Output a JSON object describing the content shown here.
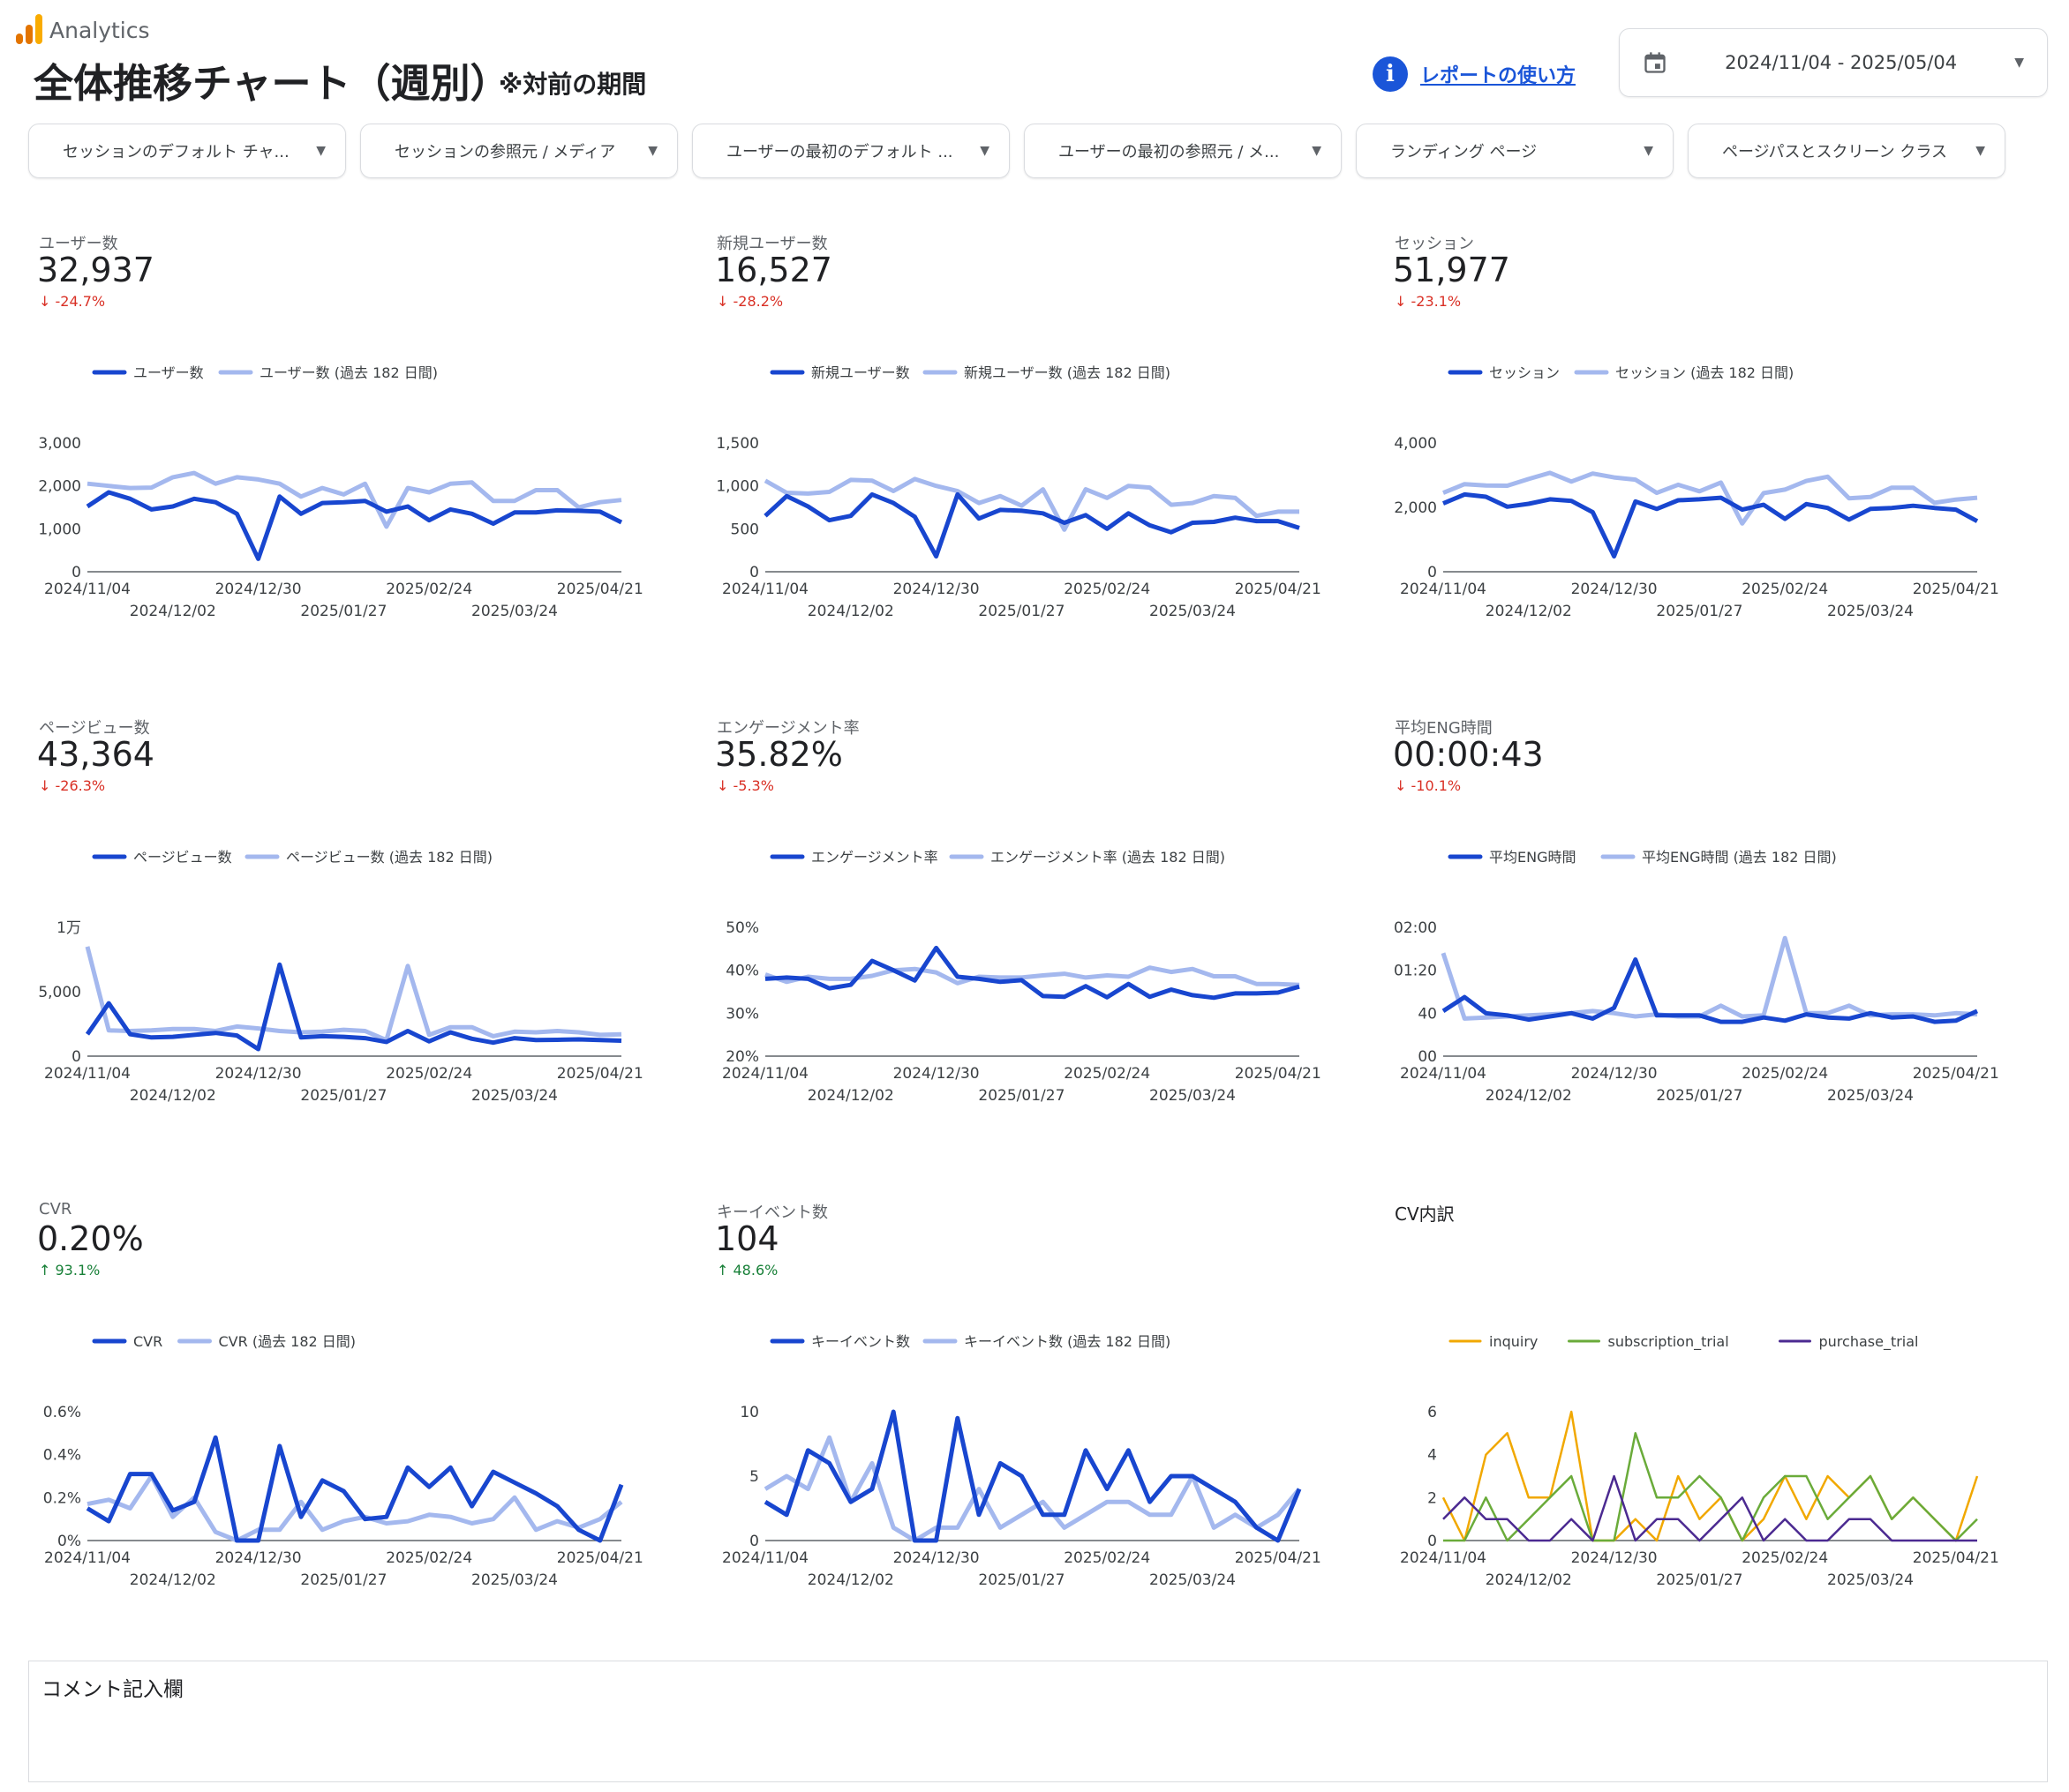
{
  "app": {
    "name": "Analytics"
  },
  "header": {
    "title": "全体推移チャート（週別）",
    "subtitle": "※対前の期間",
    "help_label": "レポートの使い方",
    "date_range": "2024/11/04 - 2025/05/04"
  },
  "filters": [
    {
      "label": "セッションのデフォルト チャ..."
    },
    {
      "label": "セッションの参照元 / メディア"
    },
    {
      "label": "ユーザーの最初のデフォルト ..."
    },
    {
      "label": "ユーザーの最初の参照元 / メ..."
    },
    {
      "label": "ランディング ページ"
    },
    {
      "label": "ページパスとスクリーン クラス"
    }
  ],
  "colors": {
    "primary": "#1846cf",
    "comparison": "#a4b8ee",
    "negative": "#d93025",
    "positive": "#188038",
    "inquiry": "#f1a800",
    "subscription_trial": "#6aab3a",
    "purchase_trial": "#4b2a91"
  },
  "kpis": [
    {
      "label": "ユーザー数",
      "value": "32,937",
      "delta": "-24.7%",
      "direction": "down"
    },
    {
      "label": "新規ユーザー数",
      "value": "16,527",
      "delta": "-28.2%",
      "direction": "down"
    },
    {
      "label": "セッション",
      "value": "51,977",
      "delta": "-23.1%",
      "direction": "down"
    },
    {
      "label": "ページビュー数",
      "value": "43,364",
      "delta": "-26.3%",
      "direction": "down"
    },
    {
      "label": "エンゲージメント率",
      "value": "35.82%",
      "delta": "-5.3%",
      "direction": "down"
    },
    {
      "label": "平均ENG時間",
      "value": "00:00:43",
      "delta": "-10.1%",
      "direction": "down"
    },
    {
      "label": "CVR",
      "value": "0.20%",
      "delta": "93.1%",
      "direction": "up"
    },
    {
      "label": "キーイベント数",
      "value": "104",
      "delta": "48.6%",
      "direction": "up"
    }
  ],
  "cv_breakdown": {
    "title": "CV内訳"
  },
  "comment": {
    "title": "コメント記入欄"
  },
  "chart_data": [
    {
      "type": "line",
      "ylim": [
        0,
        3000
      ],
      "yticks": [
        0,
        1000,
        2000,
        3000
      ],
      "ytick_labels": [
        "0",
        "1,000",
        "2,000",
        "3,000"
      ],
      "x_labels_row1": [
        "2024/11/04",
        "2024/12/30",
        "2025/02/24",
        "2025/04/21"
      ],
      "x_labels_row2": [
        "2024/12/02",
        "2025/01/27",
        "2025/03/24"
      ],
      "series": [
        {
          "name": "ユーザー数",
          "values": [
            1520,
            1850,
            1700,
            1450,
            1520,
            1700,
            1620,
            1350,
            300,
            1750,
            1350,
            1600,
            1620,
            1650,
            1400,
            1520,
            1200,
            1450,
            1350,
            1120,
            1380,
            1380,
            1430,
            1420,
            1400,
            1150
          ]
        },
        {
          "name": "ユーザー数 (過去 182 日間)",
          "values": [
            2050,
            2000,
            1950,
            1960,
            2200,
            2300,
            2050,
            2200,
            2150,
            2050,
            1750,
            1950,
            1800,
            2050,
            1050,
            1950,
            1850,
            2050,
            2080,
            1650,
            1650,
            1900,
            1900,
            1500,
            1620,
            1670
          ]
        }
      ]
    },
    {
      "type": "line",
      "ylim": [
        0,
        1500
      ],
      "yticks": [
        0,
        500,
        1000,
        1500
      ],
      "ytick_labels": [
        "0",
        "500",
        "1,000",
        "1,500"
      ],
      "x_labels_row1": [
        "2024/11/04",
        "2024/12/30",
        "2025/02/24",
        "2025/04/21"
      ],
      "x_labels_row2": [
        "2024/12/02",
        "2025/01/27",
        "2025/03/24"
      ],
      "series": [
        {
          "name": "新規ユーザー数",
          "values": [
            650,
            880,
            760,
            600,
            650,
            900,
            800,
            640,
            180,
            900,
            620,
            720,
            710,
            680,
            570,
            660,
            500,
            680,
            540,
            460,
            570,
            580,
            630,
            590,
            590,
            510
          ]
        },
        {
          "name": "新規ユーザー数 (過去 182 日間)",
          "values": [
            1060,
            920,
            910,
            930,
            1070,
            1060,
            940,
            1080,
            1000,
            940,
            800,
            880,
            770,
            960,
            490,
            960,
            860,
            1000,
            980,
            780,
            800,
            880,
            860,
            650,
            700,
            700
          ]
        }
      ]
    },
    {
      "type": "line",
      "ylim": [
        0,
        4000
      ],
      "yticks": [
        0,
        2000,
        4000
      ],
      "ytick_labels": [
        "0",
        "2,000",
        "4,000"
      ],
      "x_labels_row1": [
        "2024/11/04",
        "2024/12/30",
        "2025/02/24",
        "2025/04/21"
      ],
      "x_labels_row2": [
        "2024/12/02",
        "2025/01/27",
        "2025/03/24"
      ],
      "series": [
        {
          "name": "セッション",
          "values": [
            2120,
            2400,
            2330,
            2020,
            2110,
            2250,
            2200,
            1850,
            480,
            2180,
            1950,
            2220,
            2250,
            2300,
            1930,
            2080,
            1640,
            2100,
            1980,
            1620,
            1950,
            1980,
            2050,
            1980,
            1930,
            1570
          ]
        },
        {
          "name": "セッション (過去 182 日間)",
          "values": [
            2450,
            2720,
            2680,
            2670,
            2880,
            3070,
            2800,
            3050,
            2930,
            2860,
            2450,
            2700,
            2500,
            2770,
            1500,
            2440,
            2550,
            2820,
            2950,
            2280,
            2320,
            2610,
            2610,
            2140,
            2240,
            2300
          ]
        }
      ]
    },
    {
      "type": "line",
      "ylim": [
        0,
        10000
      ],
      "yticks": [
        0,
        5000,
        10000
      ],
      "ytick_labels": [
        "0",
        "5,000",
        "1万"
      ],
      "x_labels_row1": [
        "2024/11/04",
        "2024/12/30",
        "2025/02/24",
        "2025/04/21"
      ],
      "x_labels_row2": [
        "2024/12/02",
        "2025/01/27",
        "2025/03/24"
      ],
      "series": [
        {
          "name": "ページビュー数",
          "values": [
            1700,
            4100,
            1700,
            1450,
            1500,
            1650,
            1800,
            1600,
            550,
            7100,
            1450,
            1550,
            1500,
            1400,
            1100,
            1950,
            1150,
            1850,
            1350,
            1050,
            1400,
            1250,
            1270,
            1300,
            1250,
            1200
          ]
        },
        {
          "name": "ページビュー数 (過去 182 日間)",
          "values": [
            8500,
            2000,
            1950,
            2000,
            2100,
            2100,
            1950,
            2300,
            2150,
            1950,
            1850,
            1900,
            2050,
            1950,
            1250,
            7000,
            1650,
            2250,
            2250,
            1550,
            1900,
            1850,
            1950,
            1850,
            1650,
            1700
          ]
        }
      ]
    },
    {
      "type": "line",
      "ylim": [
        20,
        50
      ],
      "yticks": [
        20,
        30,
        40,
        50
      ],
      "ytick_labels": [
        "20%",
        "30%",
        "40%",
        "50%"
      ],
      "x_labels_row1": [
        "2024/11/04",
        "2024/12/30",
        "2025/02/24",
        "2025/04/21"
      ],
      "x_labels_row2": [
        "2024/12/02",
        "2025/01/27",
        "2025/03/24"
      ],
      "series": [
        {
          "name": "エンゲージメント率",
          "values": [
            38,
            38.3,
            38,
            35.8,
            36.6,
            42.2,
            40,
            37.6,
            45.2,
            38.5,
            38,
            37.3,
            37.7,
            34,
            33.8,
            36.3,
            33.7,
            36.8,
            33.8,
            35.5,
            34.2,
            33.6,
            34.6,
            34.6,
            34.8,
            36.2
          ]
        },
        {
          "name": "エンゲージメント率 (過去 182 日間)",
          "values": [
            39,
            37.3,
            38.5,
            38,
            38,
            38.7,
            40,
            40.3,
            39.5,
            37,
            38.5,
            38.3,
            38.3,
            38.8,
            39.2,
            38.3,
            38.8,
            38.5,
            40.6,
            39.6,
            40.3,
            38.6,
            38.6,
            36.8,
            36.8,
            36.6
          ]
        }
      ]
    },
    {
      "type": "line",
      "ylim": [
        0,
        120
      ],
      "yticks": [
        0,
        40,
        80,
        120
      ],
      "ytick_labels": [
        "00",
        "40",
        "01:20",
        "02:00"
      ],
      "x_labels_row1": [
        "2024/11/04",
        "2024/12/30",
        "2025/02/24",
        "2025/04/21"
      ],
      "x_labels_row2": [
        "2024/12/02",
        "2025/01/27",
        "2025/03/24"
      ],
      "series": [
        {
          "name": "平均ENG時間",
          "values": [
            42,
            55,
            40,
            38,
            34,
            37,
            40,
            35,
            45,
            90,
            38,
            38,
            38,
            32,
            32,
            36,
            33,
            39,
            36,
            35,
            40,
            36,
            37,
            32,
            33,
            42
          ]
        },
        {
          "name": "平均ENG時間 (過去 182 日間)",
          "values": [
            96,
            35,
            36,
            37,
            38,
            39,
            40,
            42,
            40,
            37,
            39,
            37,
            37,
            47,
            37,
            38,
            110,
            40,
            40,
            47,
            38,
            39,
            39,
            38,
            40,
            39
          ]
        }
      ]
    },
    {
      "type": "line",
      "ylim": [
        0,
        0.6
      ],
      "yticks": [
        0,
        0.2,
        0.4,
        0.6
      ],
      "ytick_labels": [
        "0%",
        "0.2%",
        "0.4%",
        "0.6%"
      ],
      "x_labels_row1": [
        "2024/11/04",
        "2024/12/30",
        "2025/02/24",
        "2025/04/21"
      ],
      "x_labels_row2": [
        "2024/12/02",
        "2025/01/27",
        "2025/03/24"
      ],
      "series": [
        {
          "name": "CVR",
          "values": [
            0.15,
            0.09,
            0.31,
            0.31,
            0.14,
            0.18,
            0.48,
            0,
            0,
            0.44,
            0.11,
            0.28,
            0.23,
            0.1,
            0.11,
            0.34,
            0.25,
            0.34,
            0.16,
            0.32,
            0.27,
            0.22,
            0.16,
            0.05,
            0,
            0.26
          ]
        },
        {
          "name": "CVR (過去 182 日間)",
          "values": [
            0.17,
            0.19,
            0.15,
            0.3,
            0.11,
            0.2,
            0.04,
            0,
            0.05,
            0.05,
            0.18,
            0.05,
            0.09,
            0.11,
            0.08,
            0.09,
            0.12,
            0.11,
            0.08,
            0.1,
            0.2,
            0.05,
            0.09,
            0.06,
            0.1,
            0.18
          ]
        }
      ]
    },
    {
      "type": "line",
      "ylim": [
        0,
        10
      ],
      "yticks": [
        0,
        5,
        10
      ],
      "ytick_labels": [
        "0",
        "5",
        "10"
      ],
      "x_labels_row1": [
        "2024/11/04",
        "2024/12/30",
        "2025/02/24",
        "2025/04/21"
      ],
      "x_labels_row2": [
        "2024/12/02",
        "2025/01/27",
        "2025/03/24"
      ],
      "series": [
        {
          "name": "キーイベント数",
          "values": [
            3,
            2,
            7,
            6,
            3,
            4,
            10,
            0,
            0,
            9.5,
            2,
            6,
            5,
            2,
            2,
            7,
            4,
            7,
            3,
            5,
            5,
            4,
            3,
            1,
            0,
            4
          ]
        },
        {
          "name": "キーイベント数 (過去 182 日間)",
          "values": [
            4,
            5,
            4,
            8,
            3,
            6,
            1,
            0,
            1,
            1,
            4,
            1,
            2,
            3,
            1,
            2,
            3,
            3,
            2,
            2,
            5,
            1,
            2,
            1,
            2,
            4
          ]
        }
      ]
    },
    {
      "type": "line",
      "ylim": [
        0,
        6
      ],
      "yticks": [
        0,
        2,
        4,
        6
      ],
      "ytick_labels": [
        "0",
        "2",
        "4",
        "6"
      ],
      "x_labels_row1": [
        "2024/11/04",
        "2024/12/30",
        "2025/02/24",
        "2025/04/21"
      ],
      "x_labels_row2": [
        "2024/12/02",
        "2025/01/27",
        "2025/03/24"
      ],
      "series": [
        {
          "name": "inquiry",
          "values": [
            2,
            0,
            4,
            5,
            2,
            2,
            6,
            0,
            0,
            1,
            0,
            3,
            1,
            2,
            0,
            1,
            3,
            1,
            3,
            2,
            3,
            1,
            2,
            1,
            0,
            3
          ]
        },
        {
          "name": "subscription_trial",
          "values": [
            0,
            0,
            2,
            0,
            1,
            2,
            3,
            0,
            0,
            5,
            2,
            2,
            3,
            2,
            0,
            2,
            3,
            3,
            1,
            2,
            3,
            1,
            2,
            1,
            0,
            1
          ]
        },
        {
          "name": "purchase_trial",
          "values": [
            1,
            2,
            1,
            1,
            0,
            0,
            1,
            0,
            3,
            0,
            1,
            1,
            0,
            1,
            2,
            0,
            1,
            0,
            0,
            1,
            1,
            0,
            0,
            0,
            0,
            0
          ]
        }
      ]
    }
  ]
}
